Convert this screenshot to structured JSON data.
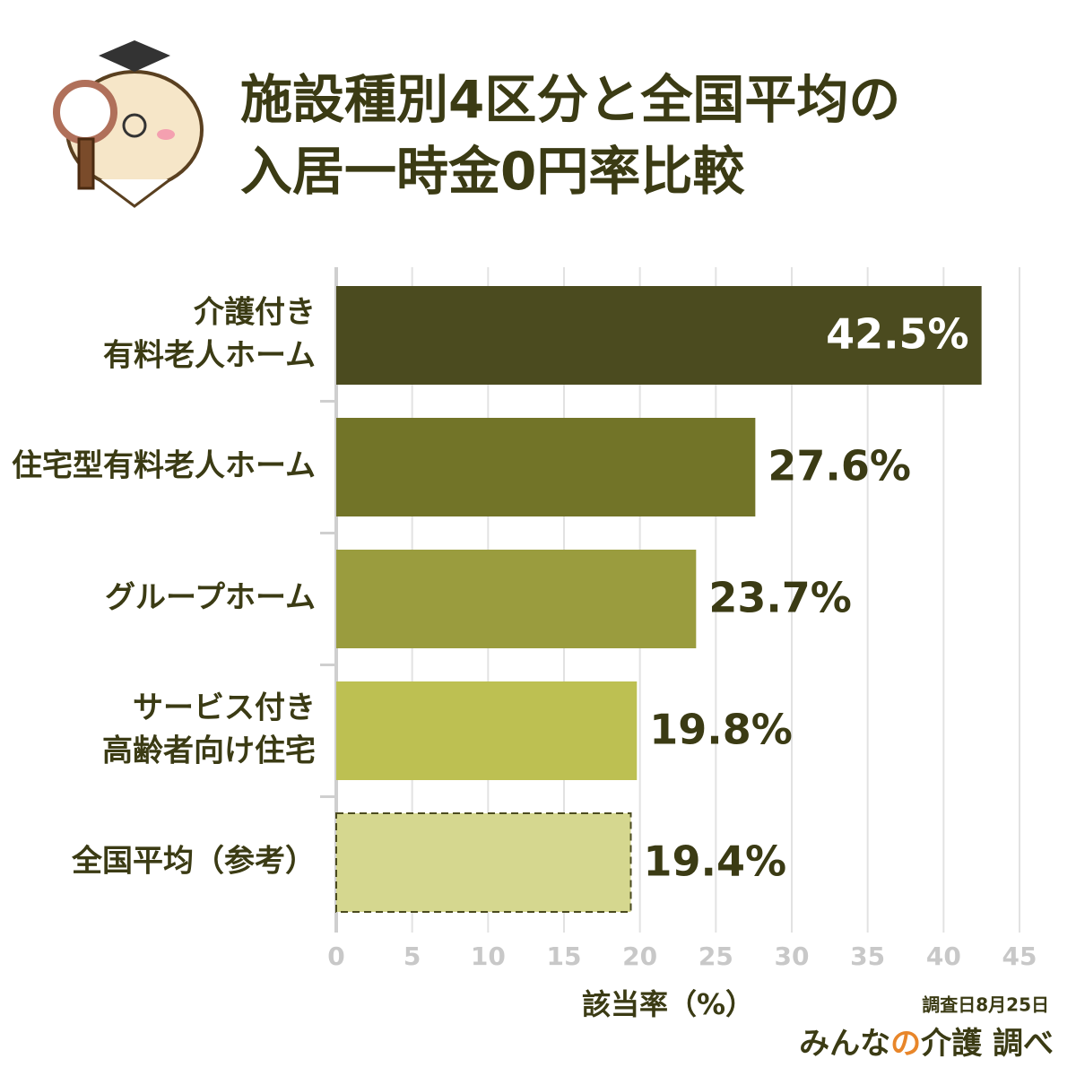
{
  "chart_data": {
    "type": "bar",
    "orientation": "horizontal",
    "title": [
      "施設種別4区分と全国平均の",
      "入居一時金0円率比較"
    ],
    "categories": [
      [
        "介護付き",
        "有料老人ホーム"
      ],
      [
        "住宅型有料老人ホーム"
      ],
      [
        "グループホーム"
      ],
      [
        "サービス付き",
        "高齢者向け住宅"
      ],
      [
        "全国平均（参考）"
      ]
    ],
    "values": [
      42.5,
      27.6,
      23.7,
      19.8,
      19.4
    ],
    "value_labels": [
      "42.5%",
      "27.6%",
      "23.7%",
      "19.8%",
      "19.4%"
    ],
    "colors": [
      "#4b4b1f",
      "#727428",
      "#9a9c3e",
      "#bdc052",
      "#d5d78f"
    ],
    "bar_styles": [
      "solid",
      "solid",
      "solid",
      "solid",
      "dashed"
    ],
    "xlim": [
      0,
      45
    ],
    "xticks": [
      0,
      5,
      10,
      15,
      20,
      25,
      30,
      35,
      40,
      45
    ],
    "xlabel": "該当率（%）",
    "grid": true,
    "source": {
      "date": "調査日8月25日",
      "brand": [
        "みんな",
        "の",
        "介護 調べ"
      ]
    }
  }
}
